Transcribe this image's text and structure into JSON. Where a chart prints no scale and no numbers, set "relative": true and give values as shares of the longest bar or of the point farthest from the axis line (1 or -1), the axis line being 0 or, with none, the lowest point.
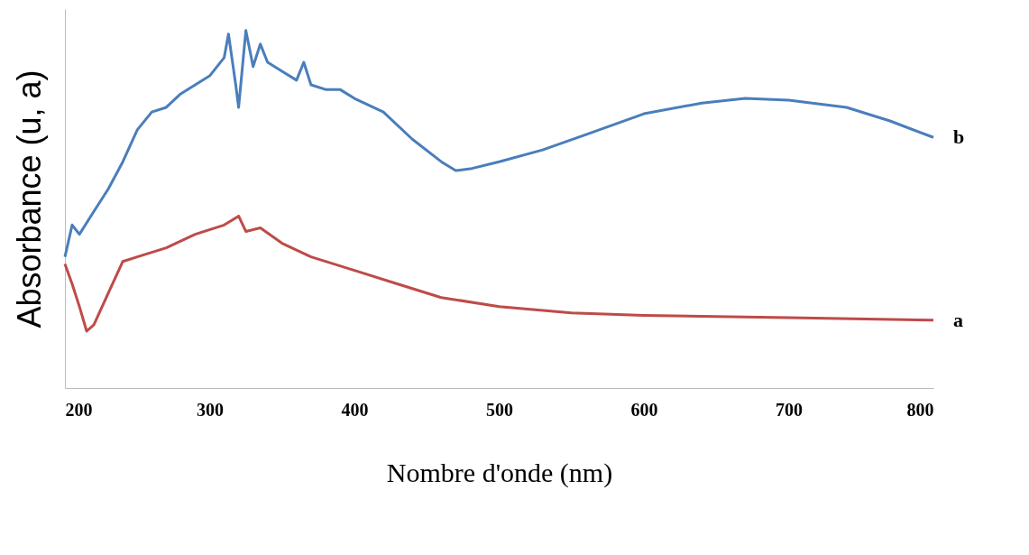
{
  "chart_data": {
    "type": "line",
    "xlabel": "Nombre d'onde (nm)",
    "ylabel": "Absorbance (u, a)",
    "relative": true,
    "xlim": [
      200,
      800
    ],
    "xticks": [
      200,
      300,
      400,
      500,
      600,
      700,
      800
    ],
    "tick_labels": "x",
    "grid": false,
    "legend": false,
    "marker": "none",
    "line_style": "solid",
    "series": [
      {
        "name": "b",
        "color": "#4a7ebb",
        "x": [
          200,
          205,
          210,
          220,
          230,
          240,
          250,
          260,
          270,
          280,
          290,
          300,
          310,
          313,
          318,
          320,
          325,
          330,
          335,
          340,
          350,
          360,
          365,
          370,
          380,
          390,
          400,
          420,
          440,
          460,
          470,
          480,
          500,
          530,
          560,
          600,
          640,
          670,
          700,
          740,
          770,
          800
        ],
        "values": [
          0.367,
          0.456,
          0.43,
          0.494,
          0.557,
          0.633,
          0.722,
          0.772,
          0.785,
          0.823,
          0.848,
          0.873,
          0.924,
          0.99,
          0.848,
          0.785,
          1.0,
          0.899,
          0.962,
          0.911,
          0.886,
          0.861,
          0.911,
          0.848,
          0.835,
          0.835,
          0.81,
          0.772,
          0.696,
          0.633,
          0.608,
          0.613,
          0.633,
          0.666,
          0.709,
          0.767,
          0.797,
          0.81,
          0.805,
          0.785,
          0.747,
          0.701
        ]
      },
      {
        "name": "a",
        "color": "#be4b48",
        "x": [
          200,
          205,
          210,
          215,
          220,
          230,
          240,
          250,
          270,
          290,
          310,
          320,
          325,
          335,
          350,
          370,
          400,
          430,
          460,
          500,
          550,
          600,
          700,
          800
        ],
        "values": [
          0.347,
          0.291,
          0.228,
          0.159,
          0.177,
          0.266,
          0.354,
          0.367,
          0.392,
          0.43,
          0.456,
          0.481,
          0.438,
          0.448,
          0.405,
          0.367,
          0.329,
          0.291,
          0.253,
          0.228,
          0.21,
          0.203,
          0.197,
          0.19
        ]
      }
    ]
  }
}
